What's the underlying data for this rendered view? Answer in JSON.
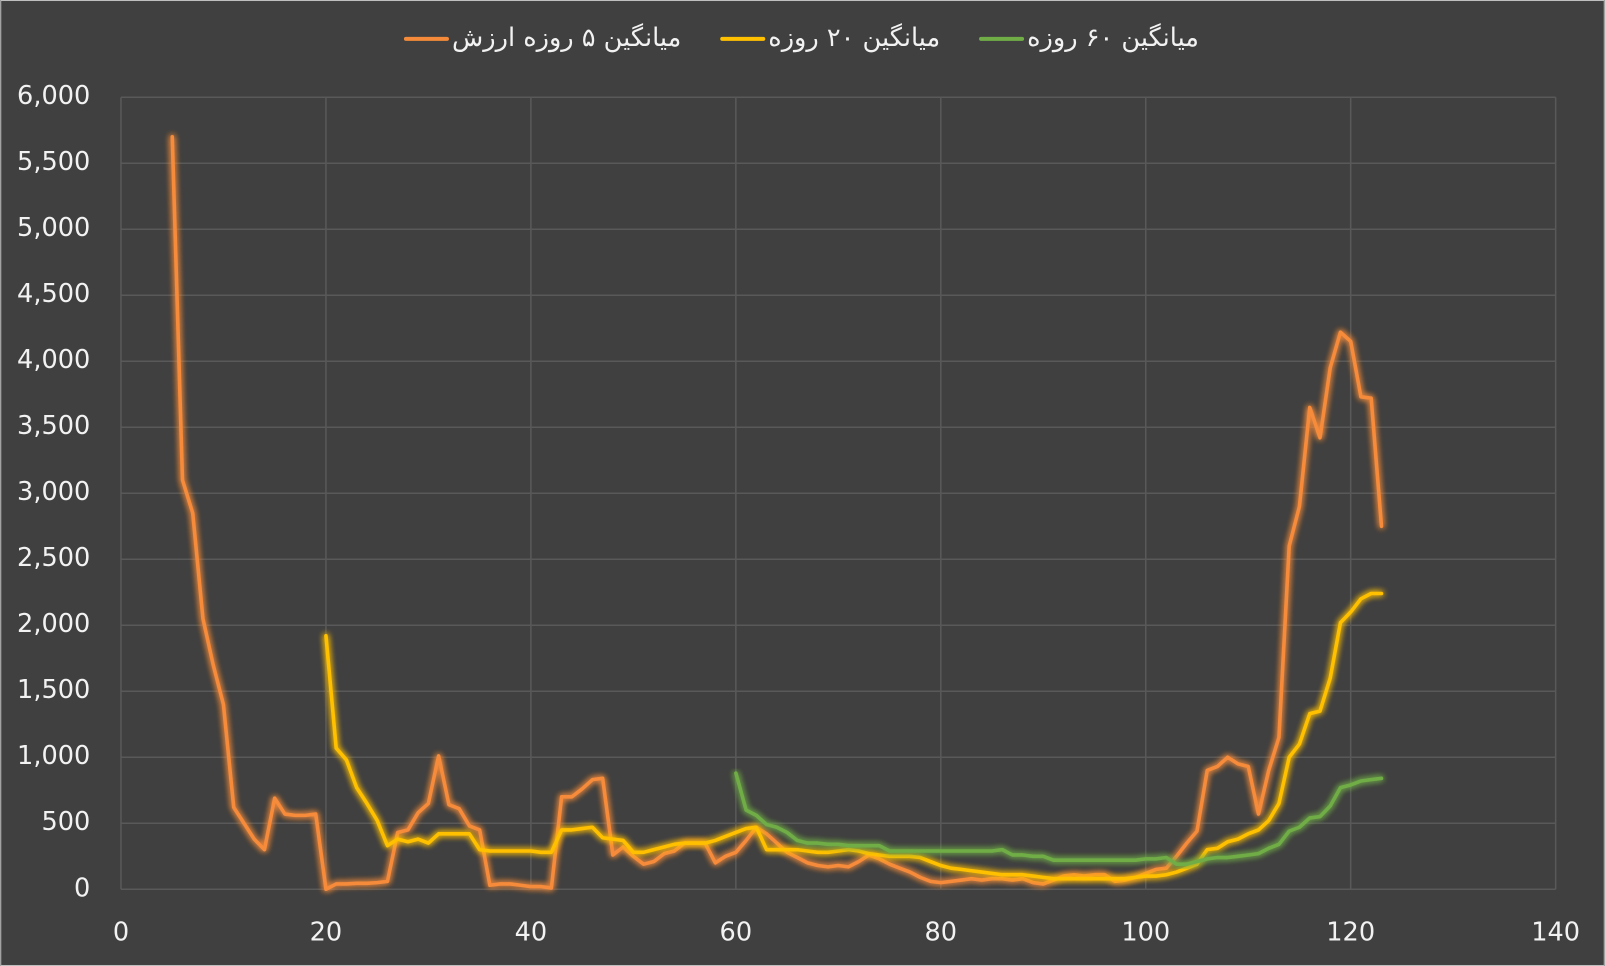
{
  "chart_data": {
    "type": "line",
    "x": [
      5,
      6,
      7,
      8,
      9,
      10,
      11,
      12,
      13,
      14,
      15,
      16,
      17,
      18,
      19,
      20,
      21,
      22,
      23,
      24,
      25,
      26,
      27,
      28,
      29,
      30,
      31,
      32,
      33,
      34,
      35,
      36,
      37,
      38,
      39,
      40,
      41,
      42,
      43,
      44,
      45,
      46,
      47,
      48,
      49,
      50,
      51,
      52,
      53,
      54,
      55,
      56,
      57,
      58,
      59,
      60,
      61,
      62,
      63,
      64,
      65,
      66,
      67,
      68,
      69,
      70,
      71,
      72,
      73,
      74,
      75,
      76,
      77,
      78,
      79,
      80,
      81,
      82,
      83,
      84,
      85,
      86,
      87,
      88,
      89,
      90,
      91,
      92,
      93,
      94,
      95,
      96,
      97,
      98,
      99,
      100,
      101,
      102,
      103,
      104,
      105,
      106,
      107,
      108,
      109,
      110,
      111,
      112,
      113,
      114,
      115,
      116,
      117,
      118,
      119,
      120,
      121,
      122,
      123
    ],
    "series": [
      {
        "name": "میانگین ۵ روزه ارزش",
        "color": "#f58b3a",
        "values": [
          5700,
          3100,
          2850,
          2050,
          1700,
          1400,
          620,
          500,
          380,
          300,
          690,
          570,
          560,
          560,
          570,
          0,
          40,
          40,
          45,
          45,
          50,
          60,
          430,
          450,
          580,
          650,
          1010,
          640,
          610,
          480,
          450,
          30,
          40,
          40,
          30,
          20,
          20,
          10,
          700,
          700,
          760,
          830,
          840,
          260,
          320,
          250,
          190,
          210,
          270,
          290,
          350,
          350,
          350,
          200,
          250,
          280,
          370,
          470,
          420,
          350,
          280,
          240,
          200,
          180,
          170,
          180,
          170,
          210,
          260,
          230,
          190,
          160,
          130,
          90,
          60,
          50,
          60,
          70,
          80,
          70,
          80,
          80,
          70,
          80,
          50,
          40,
          70,
          100,
          110,
          100,
          110,
          110,
          60,
          70,
          90,
          120,
          150,
          160,
          250,
          350,
          440,
          900,
          930,
          1000,
          950,
          930,
          570,
          900,
          1150,
          2600,
          2900,
          3650,
          3420,
          3950,
          4220,
          4150,
          3730,
          3720,
          2750
        ]
      },
      {
        "name": "میانگین ۲۰ روزه",
        "color": "#ffc000",
        "values": [
          null,
          null,
          null,
          null,
          null,
          null,
          null,
          null,
          null,
          null,
          null,
          null,
          null,
          null,
          null,
          1920,
          1070,
          980,
          770,
          650,
          520,
          330,
          380,
          360,
          380,
          350,
          420,
          420,
          420,
          420,
          300,
          290,
          290,
          290,
          290,
          290,
          280,
          280,
          450,
          450,
          460,
          470,
          390,
          380,
          370,
          280,
          280,
          300,
          320,
          340,
          350,
          350,
          350,
          370,
          400,
          430,
          460,
          470,
          300,
          300,
          300,
          300,
          290,
          280,
          280,
          290,
          300,
          290,
          270,
          260,
          250,
          250,
          250,
          240,
          210,
          180,
          160,
          150,
          140,
          130,
          120,
          110,
          110,
          110,
          100,
          90,
          80,
          80,
          80,
          80,
          80,
          80,
          80,
          80,
          90,
          100,
          100,
          110,
          130,
          160,
          190,
          300,
          310,
          360,
          380,
          420,
          450,
          520,
          650,
          1000,
          1100,
          1330,
          1350,
          1600,
          2020,
          2100,
          2200,
          2240,
          2240
        ]
      },
      {
        "name": "میانگین ۶۰ روزه",
        "color": "#70ad47",
        "values": [
          null,
          null,
          null,
          null,
          null,
          null,
          null,
          null,
          null,
          null,
          null,
          null,
          null,
          null,
          null,
          null,
          null,
          null,
          null,
          null,
          null,
          null,
          null,
          null,
          null,
          null,
          null,
          null,
          null,
          null,
          null,
          null,
          null,
          null,
          null,
          null,
          null,
          null,
          null,
          null,
          null,
          null,
          null,
          null,
          null,
          null,
          null,
          null,
          null,
          null,
          null,
          null,
          null,
          null,
          null,
          880,
          600,
          560,
          490,
          470,
          430,
          370,
          350,
          350,
          340,
          340,
          330,
          330,
          330,
          330,
          290,
          290,
          290,
          290,
          290,
          290,
          290,
          290,
          290,
          290,
          290,
          300,
          260,
          260,
          250,
          250,
          220,
          220,
          220,
          220,
          220,
          220,
          220,
          220,
          220,
          230,
          230,
          240,
          190,
          190,
          210,
          230,
          240,
          240,
          250,
          260,
          270,
          310,
          340,
          440,
          470,
          540,
          550,
          630,
          770,
          790,
          820,
          830,
          840
        ]
      }
    ],
    "xlim": [
      0,
      140
    ],
    "xticks": [
      0,
      20,
      40,
      60,
      80,
      100,
      120,
      140
    ],
    "ylim": [
      0,
      6000
    ],
    "yticks": [
      0,
      500,
      {
        "value": 1000,
        "label": "1,000"
      },
      {
        "value": 1500,
        "label": "1,500"
      },
      {
        "value": 2000,
        "label": "2,000"
      },
      {
        "value": 2500,
        "label": "2,500"
      },
      {
        "value": 3000,
        "label": "3,000"
      },
      {
        "value": 3500,
        "label": "3,500"
      },
      {
        "value": 4000,
        "label": "4,000"
      },
      {
        "value": 4500,
        "label": "4,500"
      },
      {
        "value": 5000,
        "label": "5,000"
      },
      {
        "value": 5500,
        "label": "5,500"
      },
      {
        "value": 6000,
        "label": "6,000"
      }
    ],
    "grid": true,
    "legend": "top"
  }
}
